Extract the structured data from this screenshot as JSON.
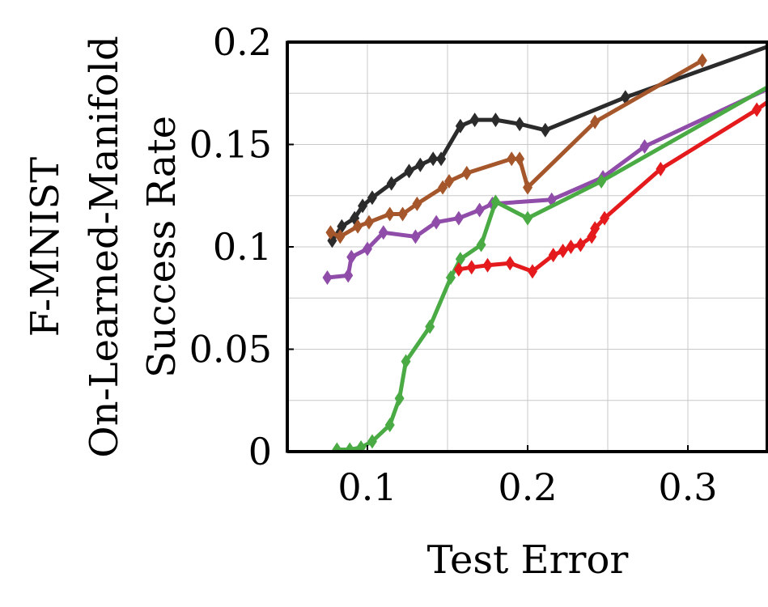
{
  "chart_data": {
    "type": "line",
    "title": "",
    "xlabel": "Test Error",
    "ylabel_lines": [
      "F-MNIST",
      "On-Learned-Manifold",
      "Success Rate"
    ],
    "xlim": [
      0.05,
      0.35
    ],
    "ylim": [
      0,
      0.2
    ],
    "x_ticks": [
      0.1,
      0.2,
      0.3
    ],
    "x_tick_labels": [
      "0.1",
      "0.2",
      "0.3"
    ],
    "y_ticks": [
      0,
      0.05,
      0.1,
      0.15,
      0.2
    ],
    "y_tick_labels": [
      "0",
      "0.05",
      "0.1",
      "0.15",
      "0.2"
    ],
    "grid": true,
    "legend": "none",
    "marker": "diamond",
    "series": [
      {
        "color": "#2b2b2b",
        "points": [
          [
            0.078,
            0.103
          ],
          [
            0.084,
            0.11
          ],
          [
            0.092,
            0.114
          ],
          [
            0.097,
            0.12
          ],
          [
            0.103,
            0.124
          ],
          [
            0.115,
            0.131
          ],
          [
            0.126,
            0.137
          ],
          [
            0.133,
            0.14
          ],
          [
            0.141,
            0.143
          ],
          [
            0.146,
            0.143
          ],
          [
            0.158,
            0.159
          ],
          [
            0.167,
            0.162
          ],
          [
            0.18,
            0.162
          ],
          [
            0.195,
            0.16
          ],
          [
            0.211,
            0.157
          ],
          [
            0.261,
            0.173
          ],
          [
            0.365,
            0.202
          ]
        ]
      },
      {
        "color": "#a5562a",
        "points": [
          [
            0.077,
            0.107
          ],
          [
            0.083,
            0.105
          ],
          [
            0.094,
            0.11
          ],
          [
            0.101,
            0.112
          ],
          [
            0.114,
            0.116
          ],
          [
            0.122,
            0.116
          ],
          [
            0.131,
            0.121
          ],
          [
            0.147,
            0.129
          ],
          [
            0.151,
            0.132
          ],
          [
            0.162,
            0.136
          ],
          [
            0.19,
            0.143
          ],
          [
            0.195,
            0.143
          ],
          [
            0.2,
            0.129
          ],
          [
            0.242,
            0.161
          ],
          [
            0.309,
            0.191
          ]
        ]
      },
      {
        "color": "#8f4ca8",
        "points": [
          [
            0.075,
            0.085
          ],
          [
            0.088,
            0.086
          ],
          [
            0.09,
            0.095
          ],
          [
            0.1,
            0.099
          ],
          [
            0.11,
            0.107
          ],
          [
            0.13,
            0.105
          ],
          [
            0.143,
            0.112
          ],
          [
            0.157,
            0.114
          ],
          [
            0.17,
            0.118
          ],
          [
            0.178,
            0.121
          ],
          [
            0.215,
            0.123
          ],
          [
            0.247,
            0.134
          ],
          [
            0.273,
            0.149
          ],
          [
            0.352,
            0.178
          ]
        ]
      },
      {
        "color": "#4aab45",
        "points": [
          [
            0.081,
            0.001
          ],
          [
            0.089,
            0.001
          ],
          [
            0.096,
            0.002
          ],
          [
            0.103,
            0.005
          ],
          [
            0.114,
            0.013
          ],
          [
            0.12,
            0.026
          ],
          [
            0.124,
            0.044
          ],
          [
            0.139,
            0.061
          ],
          [
            0.152,
            0.085
          ],
          [
            0.158,
            0.094
          ],
          [
            0.171,
            0.101
          ],
          [
            0.18,
            0.122
          ],
          [
            0.2,
            0.114
          ],
          [
            0.246,
            0.132
          ],
          [
            0.352,
            0.179
          ]
        ]
      },
      {
        "color": "#e41a1c",
        "points": [
          [
            0.157,
            0.089
          ],
          [
            0.165,
            0.09
          ],
          [
            0.175,
            0.091
          ],
          [
            0.189,
            0.092
          ],
          [
            0.203,
            0.088
          ],
          [
            0.216,
            0.096
          ],
          [
            0.222,
            0.098
          ],
          [
            0.227,
            0.1
          ],
          [
            0.233,
            0.101
          ],
          [
            0.24,
            0.105
          ],
          [
            0.242,
            0.109
          ],
          [
            0.248,
            0.114
          ],
          [
            0.283,
            0.138
          ],
          [
            0.343,
            0.167
          ],
          [
            0.352,
            0.172
          ]
        ]
      }
    ]
  }
}
